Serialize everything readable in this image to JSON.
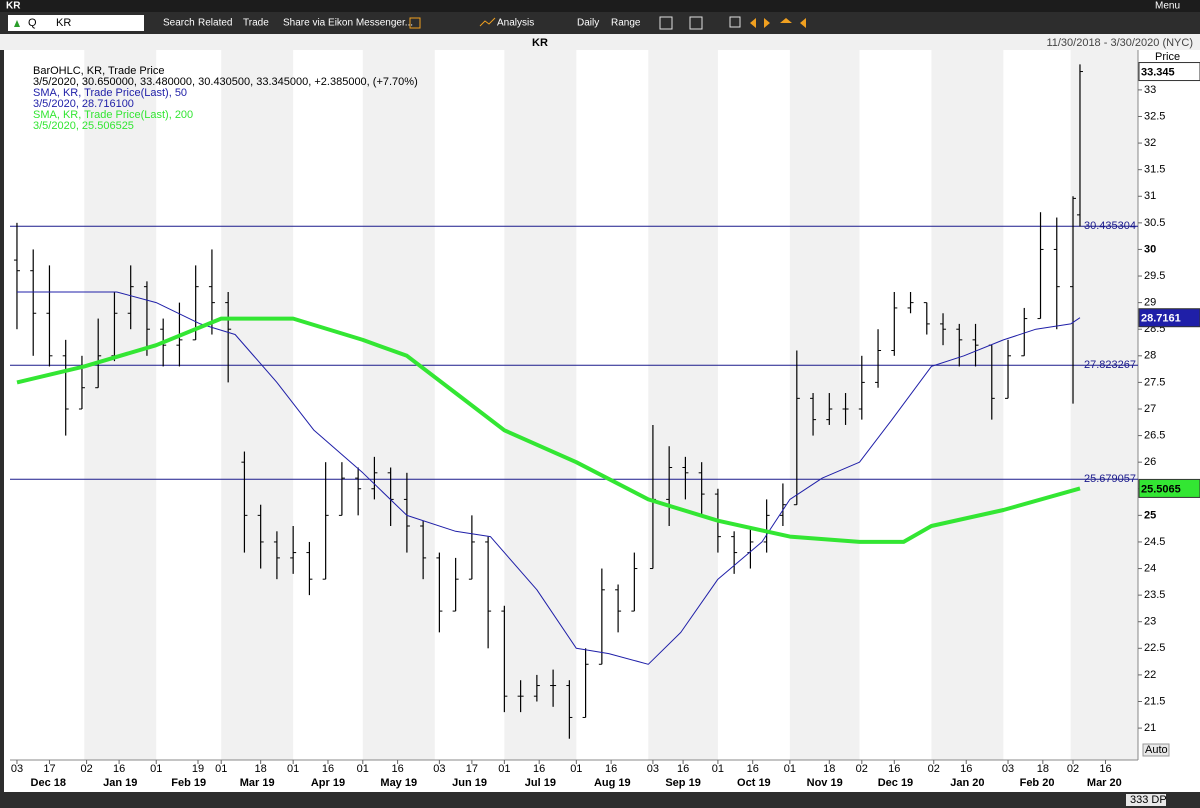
{
  "window": {
    "title": "KR",
    "menu": "Menu"
  },
  "toolbar": {
    "search_prefix": "Q",
    "ric": "KR",
    "items": [
      "Search",
      "Related",
      "Trade",
      "Share via Eikon Messenger...",
      "Analysis",
      "Daily",
      "Range"
    ]
  },
  "chart_header": {
    "title": "KR",
    "range": "11/30/2018 - 3/30/2020 (NYC)"
  },
  "status": {
    "points": "333 DP"
  },
  "chart_data": {
    "type": "ohlc",
    "y_axis_label": "Price",
    "scale_label": "Auto",
    "xlim": [
      "2018-11-30",
      "2020-03-30"
    ],
    "ylim": [
      20.4,
      33.75
    ],
    "yticks": [
      21,
      21.5,
      22,
      22.5,
      23,
      23.5,
      24,
      24.5,
      25,
      25.5,
      26,
      26.5,
      27,
      27.5,
      28,
      28.5,
      29,
      29.5,
      30,
      30.5,
      31,
      31.5,
      32,
      32.5,
      33
    ],
    "xticks": [
      {
        "value": "2018-12-03",
        "label": "03"
      },
      {
        "value": "2018-12-17",
        "label": "17"
      },
      {
        "value": "2019-01-02",
        "label": "02"
      },
      {
        "value": "2019-01-16",
        "label": "16"
      },
      {
        "value": "2019-02-01",
        "label": "01"
      },
      {
        "value": "2019-02-19",
        "label": "19"
      },
      {
        "value": "2019-03-01",
        "label": "01"
      },
      {
        "value": "2019-03-18",
        "label": "18"
      },
      {
        "value": "2019-04-01",
        "label": "01"
      },
      {
        "value": "2019-04-16",
        "label": "16"
      },
      {
        "value": "2019-05-01",
        "label": "01"
      },
      {
        "value": "2019-05-16",
        "label": "16"
      },
      {
        "value": "2019-06-03",
        "label": "03"
      },
      {
        "value": "2019-06-17",
        "label": "17"
      },
      {
        "value": "2019-07-01",
        "label": "01"
      },
      {
        "value": "2019-07-16",
        "label": "16"
      },
      {
        "value": "2019-08-01",
        "label": "01"
      },
      {
        "value": "2019-08-16",
        "label": "16"
      },
      {
        "value": "2019-09-03",
        "label": "03"
      },
      {
        "value": "2019-09-16",
        "label": "16"
      },
      {
        "value": "2019-10-01",
        "label": "01"
      },
      {
        "value": "2019-10-16",
        "label": "16"
      },
      {
        "value": "2019-11-01",
        "label": "01"
      },
      {
        "value": "2019-11-18",
        "label": "18"
      },
      {
        "value": "2019-12-02",
        "label": "02"
      },
      {
        "value": "2019-12-16",
        "label": "16"
      },
      {
        "value": "2020-01-02",
        "label": "02"
      },
      {
        "value": "2020-01-16",
        "label": "16"
      },
      {
        "value": "2020-02-03",
        "label": "03"
      },
      {
        "value": "2020-02-18",
        "label": "18"
      },
      {
        "value": "2020-03-02",
        "label": "02"
      },
      {
        "value": "2020-03-16",
        "label": "16"
      }
    ],
    "month_labels": [
      {
        "value": "2018-12",
        "label": "Dec 18"
      },
      {
        "value": "2019-01",
        "label": "Jan 19"
      },
      {
        "value": "2019-02",
        "label": "Feb 19"
      },
      {
        "value": "2019-03",
        "label": "Mar 19"
      },
      {
        "value": "2019-04",
        "label": "Apr 19"
      },
      {
        "value": "2019-05",
        "label": "May 19"
      },
      {
        "value": "2019-06",
        "label": "Jun 19"
      },
      {
        "value": "2019-07",
        "label": "Jul 19"
      },
      {
        "value": "2019-08",
        "label": "Aug 19"
      },
      {
        "value": "2019-09",
        "label": "Sep 19"
      },
      {
        "value": "2019-10",
        "label": "Oct 19"
      },
      {
        "value": "2019-11",
        "label": "Nov 19"
      },
      {
        "value": "2019-12",
        "label": "Dec 19"
      },
      {
        "value": "2020-01",
        "label": "Jan 20"
      },
      {
        "value": "2020-02",
        "label": "Feb 20"
      },
      {
        "value": "2020-03",
        "label": "Mar 20"
      }
    ],
    "hlines": [
      30.435304,
      27.823267,
      25.679057
    ],
    "hline_color": "#1a1a8c",
    "price_tags": [
      33.345,
      28.7161,
      25.5065
    ],
    "price_tag_colors": [
      "#ffffff",
      "#1f1fa8",
      "#33e633"
    ],
    "price_tag_text_colors": [
      "#000000",
      "#ffffff",
      "#000000"
    ],
    "series": [
      {
        "name": "BarOHLC, KR, Trade Price",
        "detail": "3/5/2020, 30.650000, 33.480000, 30.430500, 33.345000, +2.385000, (+7.70%)",
        "type": "ohlc",
        "color": "#000000",
        "x": [
          "2018-12-03",
          "2018-12-10",
          "2018-12-17",
          "2018-12-24",
          "2018-12-31",
          "2019-01-07",
          "2019-01-14",
          "2019-01-21",
          "2019-01-28",
          "2019-02-04",
          "2019-02-11",
          "2019-02-18",
          "2019-02-25",
          "2019-03-04",
          "2019-03-11",
          "2019-03-18",
          "2019-03-25",
          "2019-04-01",
          "2019-04-08",
          "2019-04-15",
          "2019-04-22",
          "2019-04-29",
          "2019-05-06",
          "2019-05-13",
          "2019-05-20",
          "2019-05-27",
          "2019-06-03",
          "2019-06-10",
          "2019-06-17",
          "2019-06-24",
          "2019-07-01",
          "2019-07-08",
          "2019-07-15",
          "2019-07-22",
          "2019-07-29",
          "2019-08-05",
          "2019-08-12",
          "2019-08-19",
          "2019-08-26",
          "2019-09-03",
          "2019-09-10",
          "2019-09-17",
          "2019-09-24",
          "2019-10-01",
          "2019-10-08",
          "2019-10-15",
          "2019-10-22",
          "2019-10-29",
          "2019-11-04",
          "2019-11-11",
          "2019-11-18",
          "2019-11-25",
          "2019-12-02",
          "2019-12-09",
          "2019-12-16",
          "2019-12-23",
          "2019-12-30",
          "2020-01-06",
          "2020-01-13",
          "2020-01-20",
          "2020-01-27",
          "2020-02-03",
          "2020-02-10",
          "2020-02-17",
          "2020-02-24",
          "2020-03-02",
          "2020-03-05"
        ],
        "open": [
          29.8,
          29.6,
          28.8,
          28.0,
          27.0,
          27.4,
          28.0,
          28.8,
          29.3,
          28.5,
          28.2,
          28.3,
          29.3,
          29.0,
          26.0,
          25.0,
          24.5,
          24.2,
          24.3,
          23.8,
          25.0,
          25.7,
          25.5,
          25.8,
          25.3,
          24.8,
          24.2,
          23.2,
          23.8,
          24.5,
          23.2,
          21.6,
          21.6,
          21.8,
          21.8,
          21.2,
          22.2,
          23.6,
          23.2,
          24.0,
          25.3,
          25.9,
          25.8,
          25.4,
          24.6,
          24.3,
          24.5,
          25.0,
          25.2,
          27.2,
          26.8,
          27.0,
          27.0,
          27.5,
          28.1,
          28.9,
          29.0,
          28.6,
          28.5,
          28.3,
          28.2,
          27.2,
          28.0,
          28.7,
          30.0,
          29.3,
          30.65
        ],
        "high": [
          30.5,
          30.0,
          29.7,
          28.3,
          28.0,
          28.7,
          29.2,
          29.7,
          29.4,
          28.7,
          29.0,
          29.7,
          30.0,
          29.2,
          26.2,
          25.2,
          24.7,
          24.8,
          24.5,
          26.0,
          26.0,
          25.9,
          26.1,
          25.9,
          25.8,
          24.9,
          24.3,
          24.2,
          25.0,
          24.6,
          23.3,
          21.9,
          22.0,
          22.1,
          21.9,
          22.5,
          24.0,
          23.7,
          24.3,
          26.7,
          26.3,
          26.1,
          26.0,
          25.5,
          24.7,
          24.8,
          25.3,
          25.6,
          28.1,
          27.3,
          27.3,
          27.3,
          28.0,
          28.5,
          29.2,
          29.2,
          29.0,
          28.8,
          28.6,
          28.6,
          28.2,
          28.3,
          28.9,
          30.7,
          30.6,
          31.0,
          33.48
        ],
        "low": [
          28.5,
          28.0,
          27.8,
          26.5,
          27.0,
          27.4,
          27.9,
          28.5,
          28.0,
          27.8,
          27.8,
          28.3,
          28.4,
          27.5,
          24.3,
          24.0,
          23.8,
          23.9,
          23.5,
          23.8,
          25.0,
          25.0,
          25.3,
          24.8,
          24.3,
          23.8,
          22.8,
          23.2,
          23.8,
          22.5,
          21.3,
          21.3,
          21.5,
          21.4,
          20.8,
          21.2,
          22.2,
          22.8,
          23.2,
          24.0,
          24.8,
          25.3,
          25.0,
          24.3,
          23.9,
          24.0,
          24.3,
          24.8,
          25.2,
          26.5,
          26.7,
          26.7,
          26.8,
          27.4,
          28.0,
          28.8,
          28.4,
          28.2,
          27.8,
          27.8,
          26.8,
          27.2,
          28.0,
          28.7,
          28.5,
          27.1,
          30.4305
        ],
        "close": [
          29.6,
          28.8,
          28.0,
          27.0,
          27.4,
          28.0,
          28.8,
          29.3,
          28.5,
          28.2,
          28.3,
          29.3,
          29.0,
          28.5,
          25.0,
          24.5,
          24.2,
          24.3,
          23.8,
          25.0,
          25.7,
          25.5,
          25.8,
          25.3,
          24.8,
          24.2,
          23.2,
          23.8,
          24.5,
          23.2,
          21.6,
          21.6,
          21.8,
          21.8,
          21.2,
          22.2,
          23.6,
          23.2,
          24.0,
          25.3,
          25.9,
          25.8,
          25.4,
          24.6,
          24.3,
          24.5,
          25.0,
          25.2,
          27.2,
          26.8,
          27.0,
          27.0,
          27.5,
          28.1,
          28.9,
          29.0,
          28.6,
          28.5,
          28.3,
          28.2,
          27.2,
          28.0,
          28.7,
          30.0,
          29.3,
          30.96,
          33.345
        ]
      },
      {
        "name": "SMA, KR, Trade Price(Last), 50",
        "detail": "3/5/2020, 28.716100",
        "type": "line",
        "color": "#1f1fa8",
        "width": 1,
        "x": [
          "2018-12-03",
          "2019-01-15",
          "2019-02-01",
          "2019-02-20",
          "2019-03-07",
          "2019-03-25",
          "2019-04-10",
          "2019-05-01",
          "2019-05-20",
          "2019-06-10",
          "2019-06-25",
          "2019-07-15",
          "2019-08-01",
          "2019-08-15",
          "2019-09-01",
          "2019-09-15",
          "2019-10-01",
          "2019-10-20",
          "2019-11-01",
          "2019-11-15",
          "2019-12-01",
          "2019-12-15",
          "2020-01-01",
          "2020-01-15",
          "2020-02-01",
          "2020-02-15",
          "2020-03-01",
          "2020-03-05"
        ],
        "values": [
          29.2,
          29.2,
          29.0,
          28.6,
          28.4,
          27.5,
          26.6,
          25.8,
          25.0,
          24.7,
          24.6,
          23.6,
          22.5,
          22.4,
          22.2,
          22.8,
          23.8,
          24.5,
          25.3,
          25.7,
          26.0,
          26.8,
          27.8,
          28.0,
          28.3,
          28.5,
          28.6,
          28.7161
        ]
      },
      {
        "name": "SMA, KR, Trade Price(Last), 200",
        "detail": "3/5/2020, 25.506525",
        "type": "line",
        "color": "#33e633",
        "width": 4,
        "x": [
          "2018-12-03",
          "2019-01-01",
          "2019-02-01",
          "2019-03-01",
          "2019-04-01",
          "2019-05-01",
          "2019-05-20",
          "2019-06-10",
          "2019-07-01",
          "2019-08-01",
          "2019-09-01",
          "2019-10-01",
          "2019-11-01",
          "2019-12-01",
          "2019-12-20",
          "2020-01-01",
          "2020-02-01",
          "2020-03-05"
        ],
        "values": [
          27.5,
          27.8,
          28.2,
          28.7,
          28.7,
          28.3,
          28.0,
          27.3,
          26.6,
          26.0,
          25.3,
          24.9,
          24.6,
          24.5,
          24.5,
          24.8,
          25.1,
          25.506525
        ]
      }
    ]
  }
}
